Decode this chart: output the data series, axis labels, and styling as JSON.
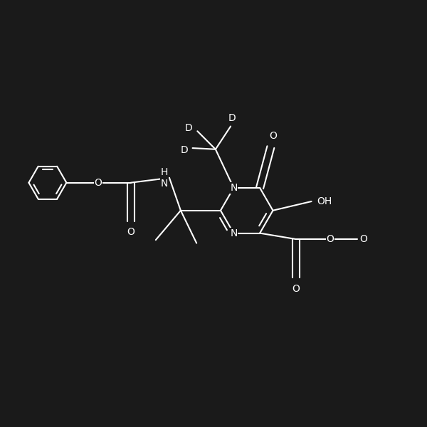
{
  "bg_color": "#1a1a1a",
  "line_color": "#ffffff",
  "line_width": 1.5,
  "font_size": 10,
  "fig_width": 6.0,
  "fig_height": 6.0,
  "dpi": 100,
  "xlim": [
    -3.2,
    3.8
  ],
  "ylim": [
    -2.5,
    2.5
  ]
}
